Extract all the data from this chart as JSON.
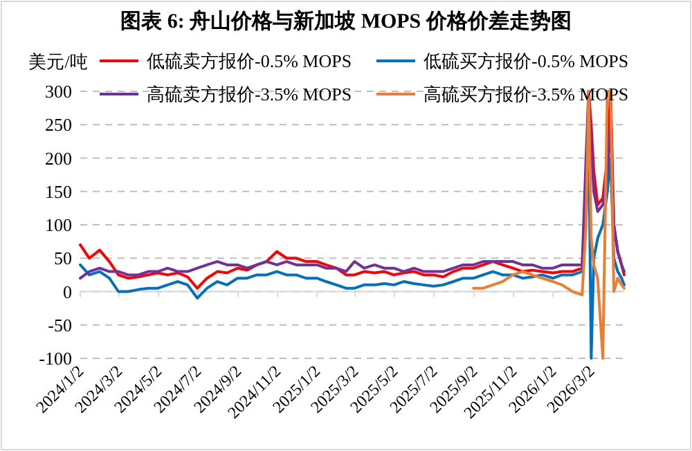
{
  "chart_data": {
    "type": "line",
    "title": "图表 6:  舟山价格与新加坡 MOPS 价格价差走势图",
    "ylabel": "美元/吨",
    "x": [
      "2024-01-02",
      "2024-01-16",
      "2024-02-01",
      "2024-02-16",
      "2024-03-01",
      "2024-03-16",
      "2024-04-01",
      "2024-04-16",
      "2024-05-01",
      "2024-05-16",
      "2024-06-01",
      "2024-06-16",
      "2024-07-01",
      "2024-07-16",
      "2024-08-01",
      "2024-08-16",
      "2024-09-01",
      "2024-09-16",
      "2024-10-01",
      "2024-10-16",
      "2024-11-01",
      "2024-11-16",
      "2024-12-01",
      "2024-12-16",
      "2025-01-02",
      "2025-01-16",
      "2025-02-01",
      "2025-02-16",
      "2025-03-01",
      "2025-03-16",
      "2025-04-01",
      "2025-04-16",
      "2025-05-01",
      "2025-05-16",
      "2025-06-01",
      "2025-06-16",
      "2025-07-01",
      "2025-07-16",
      "2025-08-01",
      "2025-08-16",
      "2025-09-01",
      "2025-09-16",
      "2025-10-01",
      "2025-10-16",
      "2025-11-01",
      "2025-11-16",
      "2025-12-01",
      "2025-12-16",
      "2026-01-02",
      "2026-01-16",
      "2026-02-01",
      "2026-02-16",
      "2026-02-22",
      "2026-02-26",
      "2026-03-02",
      "2026-03-06",
      "2026-03-12",
      "2026-03-20",
      "2026-03-27",
      "2026-04-01",
      "2026-04-06",
      "2026-04-12",
      "2026-04-18",
      "2026-04-22"
    ],
    "series": [
      {
        "name": "低硫卖方报价-0.5% MOPS",
        "color": "#ff0000",
        "values": [
          70,
          50,
          62,
          45,
          25,
          20,
          22,
          25,
          28,
          25,
          28,
          22,
          5,
          20,
          30,
          28,
          35,
          32,
          40,
          45,
          60,
          50,
          50,
          45,
          45,
          40,
          35,
          25,
          25,
          30,
          28,
          30,
          25,
          28,
          30,
          25,
          25,
          22,
          30,
          35,
          35,
          40,
          45,
          40,
          35,
          30,
          32,
          30,
          28,
          30,
          30,
          35,
          150,
          300,
          250,
          180,
          130,
          140,
          200,
          300,
          100,
          60,
          40,
          25
        ]
      },
      {
        "name": "低硫买方报价-0.5% MOPS",
        "color": "#0070c0",
        "values": [
          40,
          25,
          30,
          20,
          0,
          0,
          3,
          5,
          5,
          10,
          15,
          10,
          -10,
          5,
          15,
          10,
          20,
          20,
          25,
          25,
          30,
          25,
          25,
          20,
          20,
          15,
          10,
          5,
          5,
          10,
          10,
          12,
          10,
          15,
          12,
          10,
          8,
          10,
          15,
          20,
          20,
          25,
          30,
          25,
          25,
          20,
          22,
          25,
          20,
          25,
          25,
          30,
          100,
          250,
          -100,
          50,
          80,
          100,
          150,
          200,
          50,
          30,
          20,
          10
        ]
      },
      {
        "name": "高硫卖方报价-3.5% MOPS",
        "color": "#7030a0",
        "values": [
          20,
          30,
          35,
          30,
          30,
          25,
          25,
          30,
          30,
          35,
          30,
          30,
          35,
          40,
          45,
          40,
          40,
          35,
          40,
          45,
          40,
          45,
          40,
          40,
          40,
          35,
          35,
          30,
          45,
          35,
          40,
          35,
          35,
          30,
          35,
          30,
          30,
          30,
          35,
          40,
          40,
          45,
          45,
          45,
          45,
          40,
          40,
          35,
          35,
          40,
          40,
          40,
          200,
          300,
          220,
          150,
          120,
          130,
          180,
          250,
          100,
          60,
          40,
          30
        ]
      },
      {
        "name": "高硫买方报价-3.5% MOPS",
        "color": "#ed7d31",
        "values": [
          null,
          null,
          null,
          null,
          null,
          null,
          null,
          null,
          null,
          null,
          null,
          null,
          null,
          null,
          null,
          null,
          null,
          null,
          null,
          null,
          null,
          null,
          null,
          null,
          null,
          null,
          null,
          null,
          null,
          null,
          null,
          null,
          null,
          null,
          null,
          null,
          null,
          null,
          null,
          null,
          5,
          5,
          10,
          15,
          25,
          30,
          25,
          20,
          15,
          10,
          0,
          -5,
          100,
          300,
          80,
          40,
          20,
          -100,
          300,
          300,
          0,
          20,
          10,
          5
        ]
      }
    ],
    "xlim": [
      "2024-01-02",
      "2026-04-22"
    ],
    "xticks": [
      {
        "value": "2024-01-02",
        "label": "2024/1/2"
      },
      {
        "value": "2024-03-02",
        "label": "2024/3/2"
      },
      {
        "value": "2024-05-02",
        "label": "2024/5/2"
      },
      {
        "value": "2024-07-02",
        "label": "2024/7/2"
      },
      {
        "value": "2024-09-02",
        "label": "2024/9/2"
      },
      {
        "value": "2024-11-02",
        "label": "2024/11/2"
      },
      {
        "value": "2025-01-02",
        "label": "2025/1/2"
      },
      {
        "value": "2025-03-02",
        "label": "2025/3/2"
      },
      {
        "value": "2025-05-02",
        "label": "2025/5/2"
      },
      {
        "value": "2025-07-02",
        "label": "2025/7/2"
      },
      {
        "value": "2025-09-02",
        "label": "2025/9/2"
      },
      {
        "value": "2025-11-02",
        "label": "2025/11/2"
      },
      {
        "value": "2026-01-02",
        "label": "2026/1/2"
      },
      {
        "value": "2026-03-02",
        "label": "2026/3/2"
      }
    ],
    "ylim": [
      -100,
      300
    ],
    "yticks": [
      -100,
      -50,
      0,
      50,
      100,
      150,
      200,
      250,
      300
    ],
    "grid": "y",
    "legend": "top"
  }
}
